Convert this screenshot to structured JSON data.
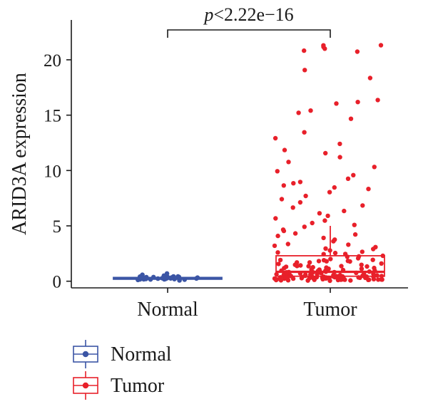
{
  "chart_data": {
    "type": "box",
    "ylabel": "ARID3A expression",
    "xlabel": "",
    "ylim": [
      -0.6,
      23.6
    ],
    "yticks": [
      0,
      5,
      10,
      15,
      20
    ],
    "categories": [
      "Normal",
      "Tumor"
    ],
    "series": [
      {
        "name": "Normal",
        "color": "#3b55a5",
        "box": {
          "q1": 0.18,
          "median": 0.26,
          "q3": 0.34,
          "whisker_low": 0.08,
          "whisker_high": 0.5
        },
        "points": [
          0.7,
          0.55,
          0.5,
          0.45,
          0.42,
          0.4,
          0.38,
          0.36,
          0.35,
          0.33,
          0.32,
          0.3,
          0.3,
          0.29,
          0.28,
          0.27,
          0.26,
          0.25,
          0.24,
          0.23,
          0.22,
          0.21,
          0.2,
          0.19,
          0.18,
          0.16,
          0.15,
          0.13,
          0.11,
          0.09
        ]
      },
      {
        "name": "Tumor",
        "color": "#e8202a",
        "box": {
          "q1": 0.45,
          "median": 0.85,
          "q3": 2.3,
          "whisker_low": 0.05,
          "whisker_high": 5.0
        },
        "points": [
          21.3,
          21.3,
          21.2,
          21.0,
          20.8,
          20.7,
          19.1,
          18.4,
          16.4,
          16.2,
          16.0,
          15.4,
          15.2,
          14.7,
          13.5,
          12.9,
          12.4,
          11.9,
          11.6,
          11.2,
          10.8,
          10.3,
          9.9,
          9.6,
          9.3,
          9.0,
          8.8,
          8.6,
          8.5,
          8.3,
          8.0,
          7.7,
          7.4,
          7.1,
          6.8,
          6.6,
          6.3,
          6.1,
          5.9,
          5.7,
          5.5,
          5.3,
          5.1,
          4.9,
          4.7,
          4.5,
          4.3,
          4.1,
          3.9,
          3.8,
          3.6,
          3.4,
          3.3,
          3.1,
          3.0,
          2.9,
          2.8,
          2.7,
          2.6,
          2.5,
          2.4,
          2.3,
          2.2,
          2.1,
          2.0,
          1.95,
          1.9,
          1.85,
          1.8,
          1.75,
          1.7,
          1.65,
          1.6,
          1.55,
          1.5,
          1.45,
          1.4,
          1.35,
          1.3,
          1.25,
          1.2,
          1.15,
          1.1,
          1.05,
          1.0,
          0.98,
          0.95,
          0.92,
          0.9,
          0.88,
          0.85,
          0.82,
          0.8,
          0.78,
          0.75,
          0.72,
          0.7,
          0.68,
          0.66,
          0.64,
          0.62,
          0.6,
          0.58,
          0.56,
          0.54,
          0.52,
          0.5,
          0.49,
          0.48,
          0.47,
          0.46,
          0.45,
          0.44,
          0.43,
          0.42,
          0.41,
          0.4,
          0.39,
          0.38,
          0.37,
          0.36,
          0.35,
          0.34,
          0.33,
          0.32,
          0.31,
          0.3,
          0.29,
          0.28,
          0.27,
          0.26,
          0.25,
          0.24,
          0.23,
          0.22,
          0.21,
          0.2,
          0.19,
          0.18,
          0.17,
          0.16,
          0.15,
          0.14,
          0.13,
          0.12,
          0.11,
          0.1,
          0.09,
          0.08,
          0.07,
          0.06,
          0.05,
          0.6,
          0.55,
          0.5,
          0.45,
          0.4,
          0.35,
          0.3,
          0.25,
          0.2,
          0.15,
          1.2,
          1.1,
          1.0,
          0.9,
          0.8,
          0.7,
          1.5,
          1.4,
          1.3,
          2.2,
          1.8,
          3.2,
          4.2,
          2.6,
          1.9,
          0.65,
          0.33,
          0.27,
          0.18,
          0.12
        ]
      }
    ],
    "annotation": {
      "text_p": "p",
      "text_rest": "<2.22e−16"
    },
    "legend": {
      "position": "bottom-left",
      "entries": [
        "Normal",
        "Tumor"
      ]
    },
    "grid": false
  }
}
